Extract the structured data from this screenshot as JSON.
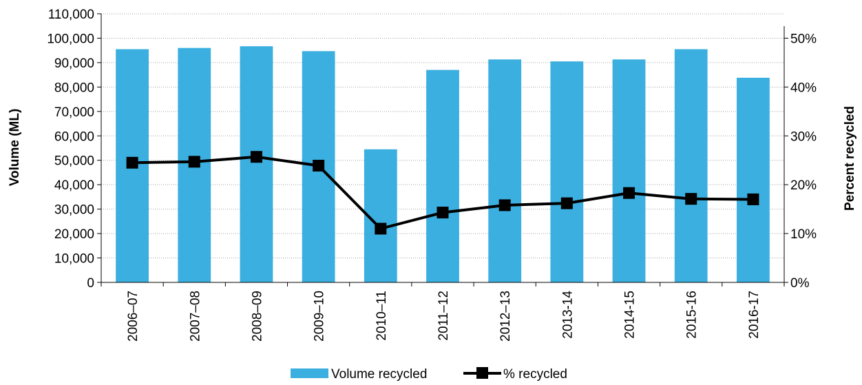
{
  "chart_data": {
    "type": "bar",
    "categories": [
      "2006–07",
      "2007–08",
      "2008–09",
      "2009–10",
      "2010–11",
      "2011–12",
      "2012–13",
      "2013-14",
      "2014-15",
      "2015-16",
      "2016-17"
    ],
    "series": [
      {
        "name": "Volume recycled",
        "type": "bar",
        "axis": "left",
        "values": [
          95500,
          96000,
          96700,
          94700,
          54500,
          87000,
          91300,
          90500,
          91300,
          95500,
          83800
        ]
      },
      {
        "name": "% recycled",
        "type": "line",
        "axis": "right",
        "values": [
          24.5,
          24.7,
          25.7,
          23.9,
          11.0,
          14.3,
          15.8,
          16.2,
          18.3,
          17.1,
          17.0
        ]
      }
    ],
    "ylabel": "Volume (ML)",
    "y2label": "Percent recycled",
    "ylim": [
      0,
      110000
    ],
    "y2lim": [
      0,
      55
    ],
    "y_ticks": [
      "0",
      "10,000",
      "20,000",
      "30,000",
      "40,000",
      "50,000",
      "60,000",
      "70,000",
      "80,000",
      "90,000",
      "100,000",
      "110,000"
    ],
    "y2_ticks": [
      "0%",
      "10%",
      "20%",
      "30%",
      "40%",
      "50%"
    ],
    "grid": true,
    "legend_position": "bottom",
    "colors": {
      "bar": "#3BAFDF",
      "line": "#000000",
      "grid": "#A0A0A0"
    }
  }
}
